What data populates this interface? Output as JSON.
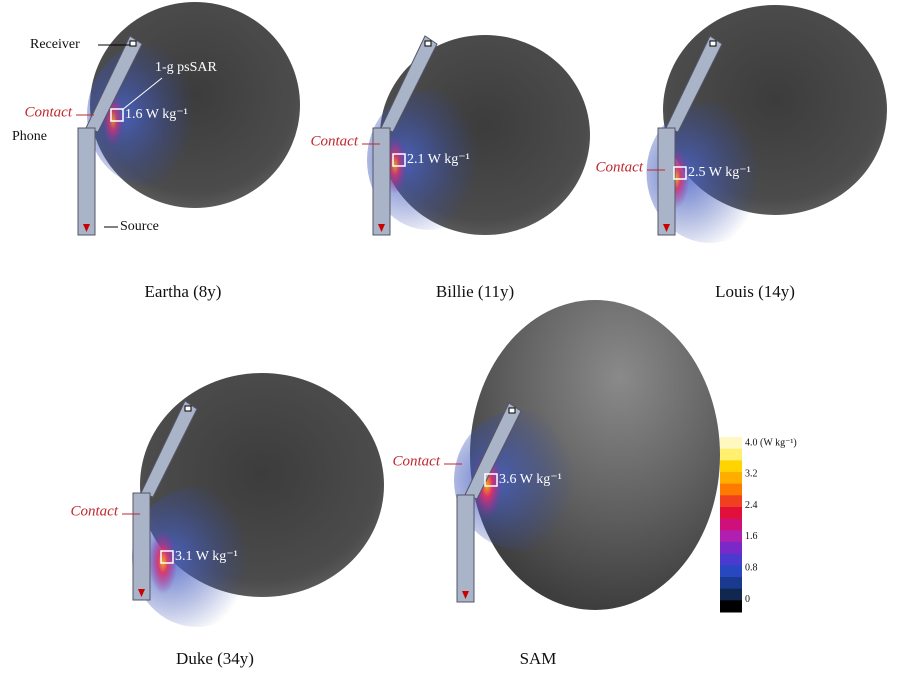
{
  "panels": [
    {
      "name": "Eartha (8y)",
      "contact": "Contact",
      "pssar": "1.6 W kg⁻¹"
    },
    {
      "name": "Billie (11y)",
      "contact": "Contact",
      "pssar": "2.1 W kg⁻¹"
    },
    {
      "name": "Louis (14y)",
      "contact": "Contact",
      "pssar": "2.5 W kg⁻¹"
    },
    {
      "name": "Duke (34y)",
      "contact": "Contact",
      "pssar": "3.1 W kg⁻¹"
    },
    {
      "name": "SAM",
      "contact": "Contact",
      "pssar": "3.6 W kg⁻¹"
    }
  ],
  "annotations": {
    "receiver": "Receiver",
    "pssar_label": "1-g psSAR",
    "phone": "Phone",
    "source": "Source"
  },
  "colorbar": {
    "labels": [
      "4.0 (W kg⁻¹)",
      "3.2",
      "2.4",
      "1.6",
      "0.8",
      "0"
    ]
  }
}
